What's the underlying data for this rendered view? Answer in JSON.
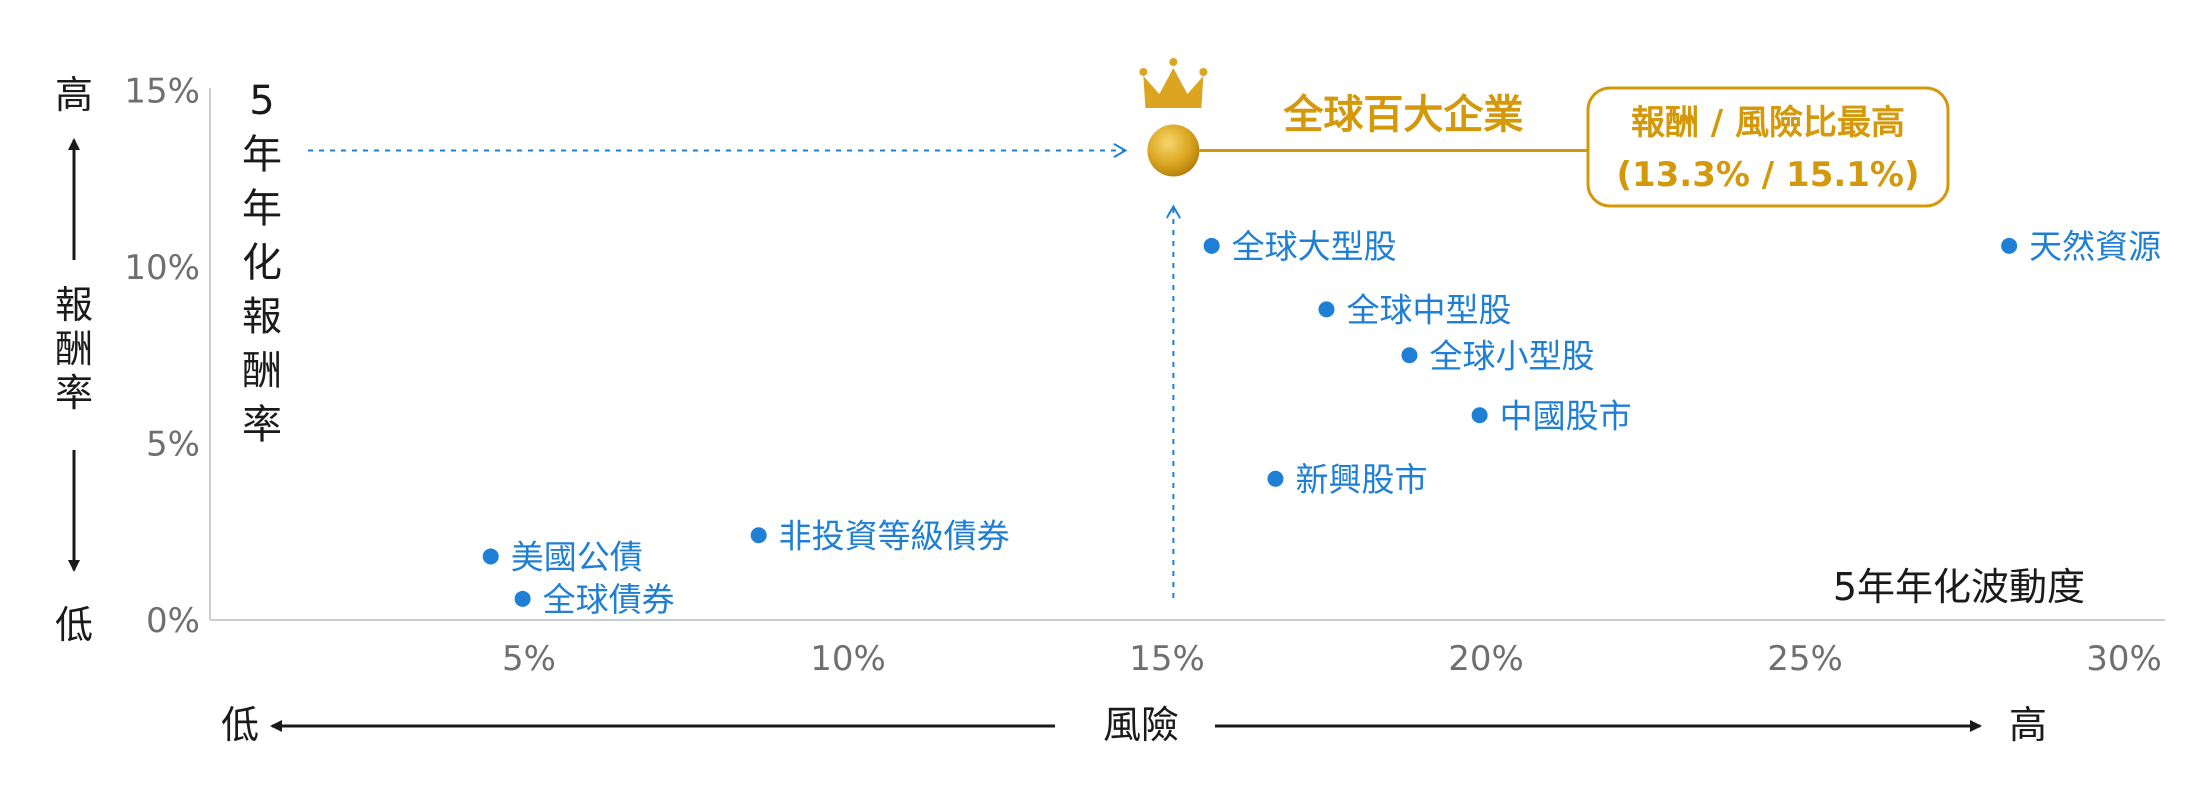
{
  "chart_data": {
    "type": "scatter",
    "xlabel": "5年年化波動度",
    "ylabel": "5年年化報酬率",
    "xlim": [
      0,
      30
    ],
    "ylim": [
      0,
      15
    ],
    "x_ticks": [
      "5%",
      "10%",
      "15%",
      "20%",
      "25%",
      "30%"
    ],
    "y_ticks": [
      "0%",
      "5%",
      "10%",
      "15%"
    ],
    "y_axis_label": {
      "high": "高",
      "low": "低",
      "middle": "報酬率"
    },
    "x_axis_label": {
      "low": "低",
      "middle": "風險",
      "high": "高"
    },
    "points": [
      {
        "label": "全球大型股",
        "x": 15.7,
        "y": 10.6
      },
      {
        "label": "全球中型股",
        "x": 17.5,
        "y": 8.8
      },
      {
        "label": "全球小型股",
        "x": 18.8,
        "y": 7.5
      },
      {
        "label": "中國股市",
        "x": 19.9,
        "y": 5.8
      },
      {
        "label": "新興股市",
        "x": 16.7,
        "y": 4.0
      },
      {
        "label": "天然資源",
        "x": 28.2,
        "y": 10.6
      },
      {
        "label": "美國公債",
        "x": 4.4,
        "y": 1.8
      },
      {
        "label": "全球債券",
        "x": 4.9,
        "y": 0.6
      },
      {
        "label": "非投資等級債券",
        "x": 8.6,
        "y": 2.4
      }
    ],
    "highlight": {
      "label": "全球百大企業",
      "x": 15.1,
      "y": 13.3,
      "note_line1": "報酬 / 風險比最高",
      "note_line2": "(13.3% / 15.1%)"
    },
    "colors": {
      "points": "#1f7fd4",
      "highlight": "#d4980b",
      "axis": "#cccccc"
    }
  }
}
